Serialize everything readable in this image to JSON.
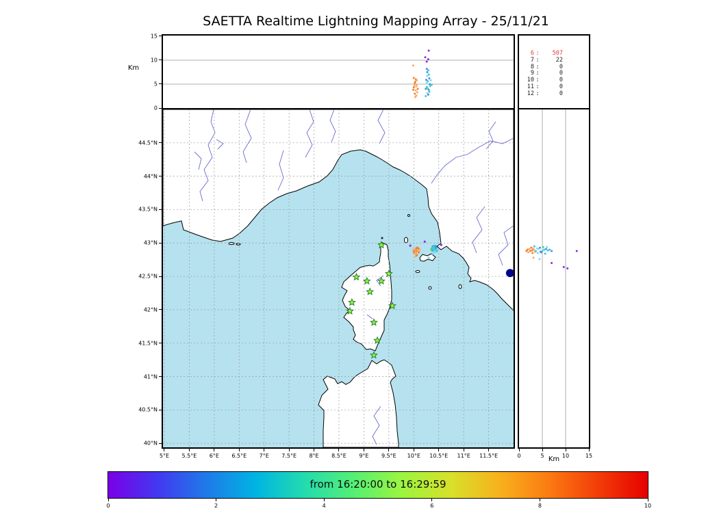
{
  "colors": {
    "sea": "#b5e2ee",
    "land": "#ffffff",
    "coast": "#000000",
    "river": "#6a6ad0",
    "grid": "#999999",
    "star_fill": "#8cf63f",
    "star_edge": "#2e7d32",
    "highlight": "#e53935",
    "navy": "#00008b",
    "o1": "#f4812a",
    "o2": "#f9a968",
    "c1": "#35c6e8",
    "c2": "#7adcf2",
    "b1": "#4d8fe0",
    "g1": "#4cd964",
    "p1": "#8b2be2"
  },
  "chart_data": {
    "type": "scatter",
    "title": "SAETTA Realtime Lightning Mapping Array - 25/11/21",
    "colorbar": {
      "label": "from 16:20:00 to 16:29:59",
      "ticks": [
        "0",
        "2",
        "4",
        "6",
        "8",
        "10"
      ],
      "range": [
        0,
        10
      ],
      "gradient": [
        "#7a00e6",
        "#4338f0",
        "#1f7ae8",
        "#00b4e2",
        "#23dbae",
        "#55ef74",
        "#9cf53f",
        "#d8e02a",
        "#f8b01c",
        "#fb7a12",
        "#f23c08",
        "#e60000"
      ]
    },
    "panels": [
      {
        "id": "alt_lon",
        "ylabel": "Km",
        "xlim": [
          4.973,
          12.0
        ],
        "ylim": [
          0,
          15.14
        ],
        "yticks": [
          {
            "v": 0,
            "t": "0"
          },
          {
            "v": 5,
            "t": "5"
          },
          {
            "v": 10,
            "t": "10"
          },
          {
            "v": 15,
            "t": "15"
          }
        ],
        "grid_y": [
          5,
          10
        ],
        "points": [
          [
            10.02,
            3.0,
            "o1"
          ],
          [
            10.04,
            3.7,
            "o2"
          ],
          [
            10.0,
            4.3,
            "o1"
          ],
          [
            10.06,
            4.9,
            "o2"
          ],
          [
            10.03,
            5.5,
            "o1"
          ],
          [
            10.05,
            2.6,
            "o2"
          ],
          [
            10.08,
            4.0,
            "o1"
          ],
          [
            10.01,
            4.7,
            "o2"
          ],
          [
            10.04,
            6.0,
            "o1"
          ],
          [
            10.07,
            3.3,
            "o2"
          ],
          [
            10.02,
            5.2,
            "o1"
          ],
          [
            10.05,
            4.5,
            "o2"
          ],
          [
            9.99,
            3.8,
            "o1"
          ],
          [
            10.06,
            5.8,
            "o2"
          ],
          [
            10.0,
            6.3,
            "o1"
          ],
          [
            10.03,
            2.3,
            "o2"
          ],
          [
            9.99,
            8.9,
            "o2"
          ],
          [
            10.24,
            2.5,
            "c1"
          ],
          [
            10.27,
            3.1,
            "c2"
          ],
          [
            10.3,
            3.8,
            "b1"
          ],
          [
            10.26,
            4.4,
            "c1"
          ],
          [
            10.32,
            5.0,
            "b1"
          ],
          [
            10.28,
            5.6,
            "c1"
          ],
          [
            10.31,
            6.2,
            "b1"
          ],
          [
            10.27,
            6.7,
            "c2"
          ],
          [
            10.24,
            4.0,
            "b1"
          ],
          [
            10.33,
            4.6,
            "c1"
          ],
          [
            10.29,
            2.8,
            "b1"
          ],
          [
            10.26,
            5.3,
            "c2"
          ],
          [
            10.31,
            3.4,
            "c1"
          ],
          [
            10.28,
            4.1,
            "g1"
          ],
          [
            10.25,
            5.9,
            "b1"
          ],
          [
            10.3,
            7.0,
            "c1"
          ],
          [
            10.27,
            7.5,
            "b1"
          ],
          [
            10.34,
            5.8,
            "c2"
          ],
          [
            10.36,
            4.9,
            "c1"
          ],
          [
            10.29,
            7.9,
            "c1"
          ],
          [
            10.26,
            8.2,
            "b1"
          ],
          [
            10.26,
            9.7,
            "p1"
          ],
          [
            10.29,
            10.2,
            "p1"
          ],
          [
            10.23,
            10.6,
            "p1"
          ],
          [
            10.3,
            12.0,
            "p1"
          ]
        ]
      },
      {
        "id": "map",
        "xlim": [
          4.973,
          12.0
        ],
        "ylim": [
          39.94,
          45.0
        ],
        "xticks": [
          {
            "v": 5,
            "t": "5°E"
          },
          {
            "v": 5.5,
            "t": "5.5°E"
          },
          {
            "v": 6,
            "t": "6°E"
          },
          {
            "v": 6.5,
            "t": "6.5°E"
          },
          {
            "v": 7,
            "t": "7°E"
          },
          {
            "v": 7.5,
            "t": "7.5°E"
          },
          {
            "v": 8,
            "t": "8°E"
          },
          {
            "v": 8.5,
            "t": "8.5°E"
          },
          {
            "v": 9,
            "t": "9°E"
          },
          {
            "v": 9.5,
            "t": "9.5°E"
          },
          {
            "v": 10,
            "t": "10°E"
          },
          {
            "v": 10.5,
            "t": "10.5°E"
          },
          {
            "v": 11,
            "t": "11°E"
          },
          {
            "v": 11.5,
            "t": "11.5°E"
          }
        ],
        "yticks": [
          {
            "v": 44.5,
            "t": "44.5°N"
          },
          {
            "v": 44,
            "t": "44°N"
          },
          {
            "v": 43.5,
            "t": "43.5°N"
          },
          {
            "v": 43,
            "t": "43°N"
          },
          {
            "v": 42.5,
            "t": "42.5°N"
          },
          {
            "v": 42,
            "t": "42°N"
          },
          {
            "v": 41.5,
            "t": "41.5°N"
          },
          {
            "v": 41,
            "t": "41°N"
          },
          {
            "v": 40.5,
            "t": "40.5°N"
          },
          {
            "v": 40,
            "t": "40°N"
          }
        ],
        "points": [
          [
            10.0,
            42.86,
            "o1"
          ],
          [
            10.03,
            42.9,
            "o2"
          ],
          [
            10.06,
            42.88,
            "o1"
          ],
          [
            10.02,
            42.84,
            "o2"
          ],
          [
            10.05,
            42.92,
            "o1"
          ],
          [
            10.08,
            42.89,
            "o2"
          ],
          [
            10.01,
            42.88,
            "o1"
          ],
          [
            10.04,
            42.85,
            "o2"
          ],
          [
            10.07,
            42.93,
            "o1"
          ],
          [
            9.99,
            42.9,
            "o2"
          ],
          [
            10.1,
            42.86,
            "o1"
          ],
          [
            10.04,
            42.8,
            "o2"
          ],
          [
            10.06,
            42.82,
            "o1"
          ],
          [
            10.12,
            42.9,
            "o2"
          ],
          [
            10.09,
            42.92,
            "o1"
          ],
          [
            10.36,
            42.92,
            "c1"
          ],
          [
            10.39,
            42.88,
            "c2"
          ],
          [
            10.42,
            42.93,
            "c1"
          ],
          [
            10.38,
            42.95,
            "b1"
          ],
          [
            10.41,
            42.86,
            "c2"
          ],
          [
            10.44,
            42.91,
            "c1"
          ],
          [
            10.37,
            42.89,
            "b1"
          ],
          [
            10.4,
            42.94,
            "c1"
          ],
          [
            10.43,
            42.87,
            "c2"
          ],
          [
            10.39,
            42.91,
            "g1"
          ],
          [
            10.42,
            42.96,
            "c1"
          ],
          [
            10.45,
            42.93,
            "b1"
          ],
          [
            10.38,
            42.84,
            "c2"
          ],
          [
            10.41,
            42.9,
            "c1"
          ],
          [
            10.46,
            42.88,
            "c1"
          ],
          [
            10.35,
            42.9,
            "g1"
          ],
          [
            10.48,
            42.91,
            "c2"
          ],
          [
            10.44,
            42.95,
            "b1"
          ],
          [
            10.3,
            42.78,
            "c2"
          ],
          [
            10.22,
            43.02,
            "p1"
          ],
          [
            10.55,
            42.97,
            "p1"
          ],
          [
            9.93,
            42.96,
            "p1"
          ]
        ],
        "stations": [
          [
            9.35,
            42.97
          ],
          [
            8.85,
            42.49
          ],
          [
            9.06,
            42.43
          ],
          [
            9.35,
            42.43
          ],
          [
            9.5,
            42.54
          ],
          [
            9.12,
            42.27
          ],
          [
            8.76,
            42.11
          ],
          [
            8.72,
            41.98
          ],
          [
            9.57,
            42.06
          ],
          [
            9.2,
            41.81
          ],
          [
            9.27,
            41.54
          ],
          [
            9.2,
            41.32
          ]
        ],
        "marker_navy": [
          11.93,
          42.55
        ]
      },
      {
        "id": "alt_lat",
        "xlabel": "Km",
        "xlim": [
          0,
          15
        ],
        "ylim": [
          39.94,
          45.0
        ],
        "xticks": [
          {
            "v": 0,
            "t": "0"
          },
          {
            "v": 5,
            "t": "5"
          },
          {
            "v": 10,
            "t": "10"
          },
          {
            "v": 15,
            "t": "15"
          }
        ],
        "grid_x": [
          5,
          10
        ],
        "points": [
          [
            1.6,
            42.88,
            "o1"
          ],
          [
            2.2,
            42.91,
            "o2"
          ],
          [
            2.8,
            42.89,
            "o1"
          ],
          [
            2.0,
            42.86,
            "o2"
          ],
          [
            2.6,
            42.93,
            "o1"
          ],
          [
            3.2,
            42.9,
            "o2"
          ],
          [
            2.4,
            42.88,
            "o1"
          ],
          [
            3.0,
            42.92,
            "o2"
          ],
          [
            1.8,
            42.9,
            "o1"
          ],
          [
            3.4,
            42.87,
            "o2"
          ],
          [
            2.9,
            42.85,
            "o1"
          ],
          [
            3.1,
            42.78,
            "o2"
          ],
          [
            3.6,
            42.88,
            "c1"
          ],
          [
            4.2,
            42.91,
            "c2"
          ],
          [
            4.8,
            42.86,
            "b1"
          ],
          [
            5.4,
            42.9,
            "c1"
          ],
          [
            4.5,
            42.93,
            "b1"
          ],
          [
            5.0,
            42.88,
            "c1"
          ],
          [
            5.8,
            42.91,
            "b1"
          ],
          [
            4.0,
            42.85,
            "c2"
          ],
          [
            6.2,
            42.89,
            "c1"
          ],
          [
            5.2,
            42.94,
            "g1"
          ],
          [
            4.6,
            42.87,
            "b1"
          ],
          [
            6.6,
            42.9,
            "c1"
          ],
          [
            3.9,
            42.92,
            "c2"
          ],
          [
            5.6,
            42.84,
            "c1"
          ],
          [
            7.0,
            42.88,
            "b1"
          ],
          [
            3.3,
            42.95,
            "c1"
          ],
          [
            6.0,
            42.94,
            "c2"
          ],
          [
            4.4,
            42.76,
            "c2"
          ],
          [
            9.6,
            42.64,
            "p1"
          ],
          [
            10.4,
            42.62,
            "p1"
          ],
          [
            12.4,
            42.88,
            "p1"
          ],
          [
            7.0,
            42.7,
            "p1"
          ]
        ]
      },
      {
        "id": "station_counts",
        "rows": [
          {
            "n": "6",
            "v": "507",
            "hl": true
          },
          {
            "n": "7",
            "v": "22",
            "hl": false
          },
          {
            "n": "8",
            "v": "0",
            "hl": false
          },
          {
            "n": "9",
            "v": "0",
            "hl": false
          },
          {
            "n": "10",
            "v": "0",
            "hl": false
          },
          {
            "n": "11",
            "v": "0",
            "hl": false
          },
          {
            "n": "12",
            "v": "0",
            "hl": false
          }
        ]
      }
    ]
  }
}
